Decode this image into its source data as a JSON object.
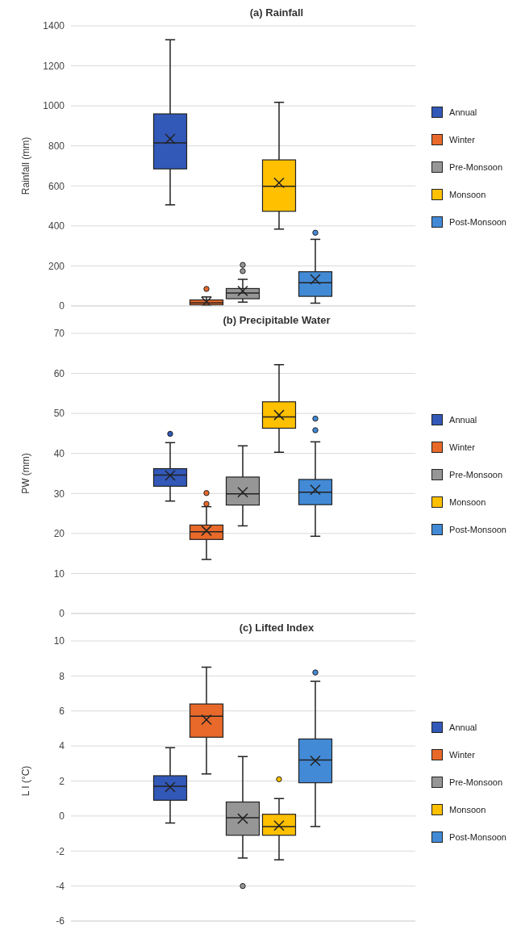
{
  "chart_data": [
    {
      "type": "box",
      "title": "(a) Rainfall",
      "ylabel": "Rainfall (mm)",
      "categories": [
        null
      ],
      "ylim": [
        0,
        1400
      ],
      "yticks": [
        0,
        200,
        400,
        600,
        800,
        1000,
        1200,
        1400
      ],
      "grid": "y",
      "legend": "right",
      "series": [
        {
          "name": "Annual",
          "color": "#3258b8",
          "boxes": [
            {
              "low": 505,
              "q1": 685,
              "median": 815,
              "q3": 960,
              "high": 1330,
              "mean": 835
            }
          ]
        },
        {
          "name": "Winter",
          "color": "#e8692a",
          "boxes": [
            {
              "low": 0,
              "q1": 5,
              "median": 15,
              "q3": 30,
              "high": 45,
              "mean": 20,
              "outliers": [
                85
              ]
            }
          ]
        },
        {
          "name": "Pre-Monsoon",
          "color": "#969696",
          "boxes": [
            {
              "low": 19,
              "q1": 36,
              "median": 65,
              "q3": 87,
              "high": 133,
              "mean": 75,
              "outliers": [
                174,
                205
              ]
            }
          ]
        },
        {
          "name": "Monsoon",
          "color": "#ffc000",
          "boxes": [
            {
              "low": 384,
              "q1": 473,
              "median": 598,
              "q3": 730,
              "high": 1018,
              "mean": 615
            }
          ]
        },
        {
          "name": "Post-Monsoon",
          "color": "#428ad6",
          "boxes": [
            {
              "low": 14,
              "q1": 48,
              "median": 116,
              "q3": 171,
              "high": 333,
              "mean": 133,
              "outliers": [
                366
              ]
            }
          ]
        }
      ]
    },
    {
      "type": "box",
      "title": "(b) Precipitable Water",
      "ylabel": "PW (mm)",
      "categories": [
        null
      ],
      "ylim": [
        0,
        70
      ],
      "yticks": [
        0,
        10,
        20,
        30,
        40,
        50,
        60,
        70
      ],
      "grid": "y",
      "legend": "right",
      "series": [
        {
          "name": "Annual",
          "color": "#3258b8",
          "boxes": [
            {
              "low": 28.1,
              "q1": 31.8,
              "median": 34.6,
              "q3": 36.2,
              "high": 42.7,
              "mean": 34.5,
              "outliers": [
                44.9
              ]
            }
          ]
        },
        {
          "name": "Winter",
          "color": "#e8692a",
          "boxes": [
            {
              "low": 13.5,
              "q1": 18.5,
              "median": 20.4,
              "q3": 22.1,
              "high": 26.7,
              "mean": 20.7,
              "outliers": [
                27.4,
                30.1
              ]
            }
          ]
        },
        {
          "name": "Pre-Monsoon",
          "color": "#969696",
          "boxes": [
            {
              "low": 21.9,
              "q1": 27.1,
              "median": 29.9,
              "q3": 34.1,
              "high": 41.9,
              "mean": 30.3
            }
          ]
        },
        {
          "name": "Monsoon",
          "color": "#ffc000",
          "boxes": [
            {
              "low": 40.3,
              "q1": 46.3,
              "median": 49.1,
              "q3": 52.9,
              "high": 62.2,
              "mean": 49.6
            }
          ]
        },
        {
          "name": "Post-Monsoon",
          "color": "#428ad6",
          "boxes": [
            {
              "low": 19.3,
              "q1": 27.2,
              "median": 30.3,
              "q3": 33.5,
              "high": 42.9,
              "mean": 30.9,
              "outliers": [
                45.8,
                48.7
              ]
            }
          ]
        }
      ]
    },
    {
      "type": "box",
      "title": "(c) Lifted Index",
      "ylabel": "L I (°C)",
      "categories": [
        null
      ],
      "ylim": [
        -6,
        10
      ],
      "yticks": [
        -6,
        -4,
        -2,
        0,
        2,
        4,
        6,
        8,
        10
      ],
      "grid": "y",
      "legend": "right",
      "series": [
        {
          "name": "Annual",
          "color": "#3258b8",
          "boxes": [
            {
              "low": -0.4,
              "q1": 0.9,
              "median": 1.7,
              "q3": 2.3,
              "high": 3.9,
              "mean": 1.65
            }
          ]
        },
        {
          "name": "Winter",
          "color": "#e8692a",
          "boxes": [
            {
              "low": 2.4,
              "q1": 4.5,
              "median": 5.7,
              "q3": 6.4,
              "high": 8.5,
              "mean": 5.5
            }
          ]
        },
        {
          "name": "Pre-Monsoon",
          "color": "#969696",
          "boxes": [
            {
              "low": -2.4,
              "q1": -1.1,
              "median": -0.1,
              "q3": 0.8,
              "high": 3.4,
              "mean": -0.15,
              "outliers": [
                -4.0
              ]
            }
          ]
        },
        {
          "name": "Monsoon",
          "color": "#ffc000",
          "boxes": [
            {
              "low": -2.5,
              "q1": -1.1,
              "median": -0.6,
              "q3": 0.1,
              "high": 1.0,
              "mean": -0.55,
              "outliers": [
                2.1
              ]
            }
          ]
        },
        {
          "name": "Post-Monsoon",
          "color": "#428ad6",
          "boxes": [
            {
              "low": -0.6,
              "q1": 1.9,
              "median": 3.2,
              "q3": 4.4,
              "high": 7.7,
              "mean": 3.15,
              "outliers": [
                8.2
              ]
            }
          ]
        }
      ]
    }
  ]
}
